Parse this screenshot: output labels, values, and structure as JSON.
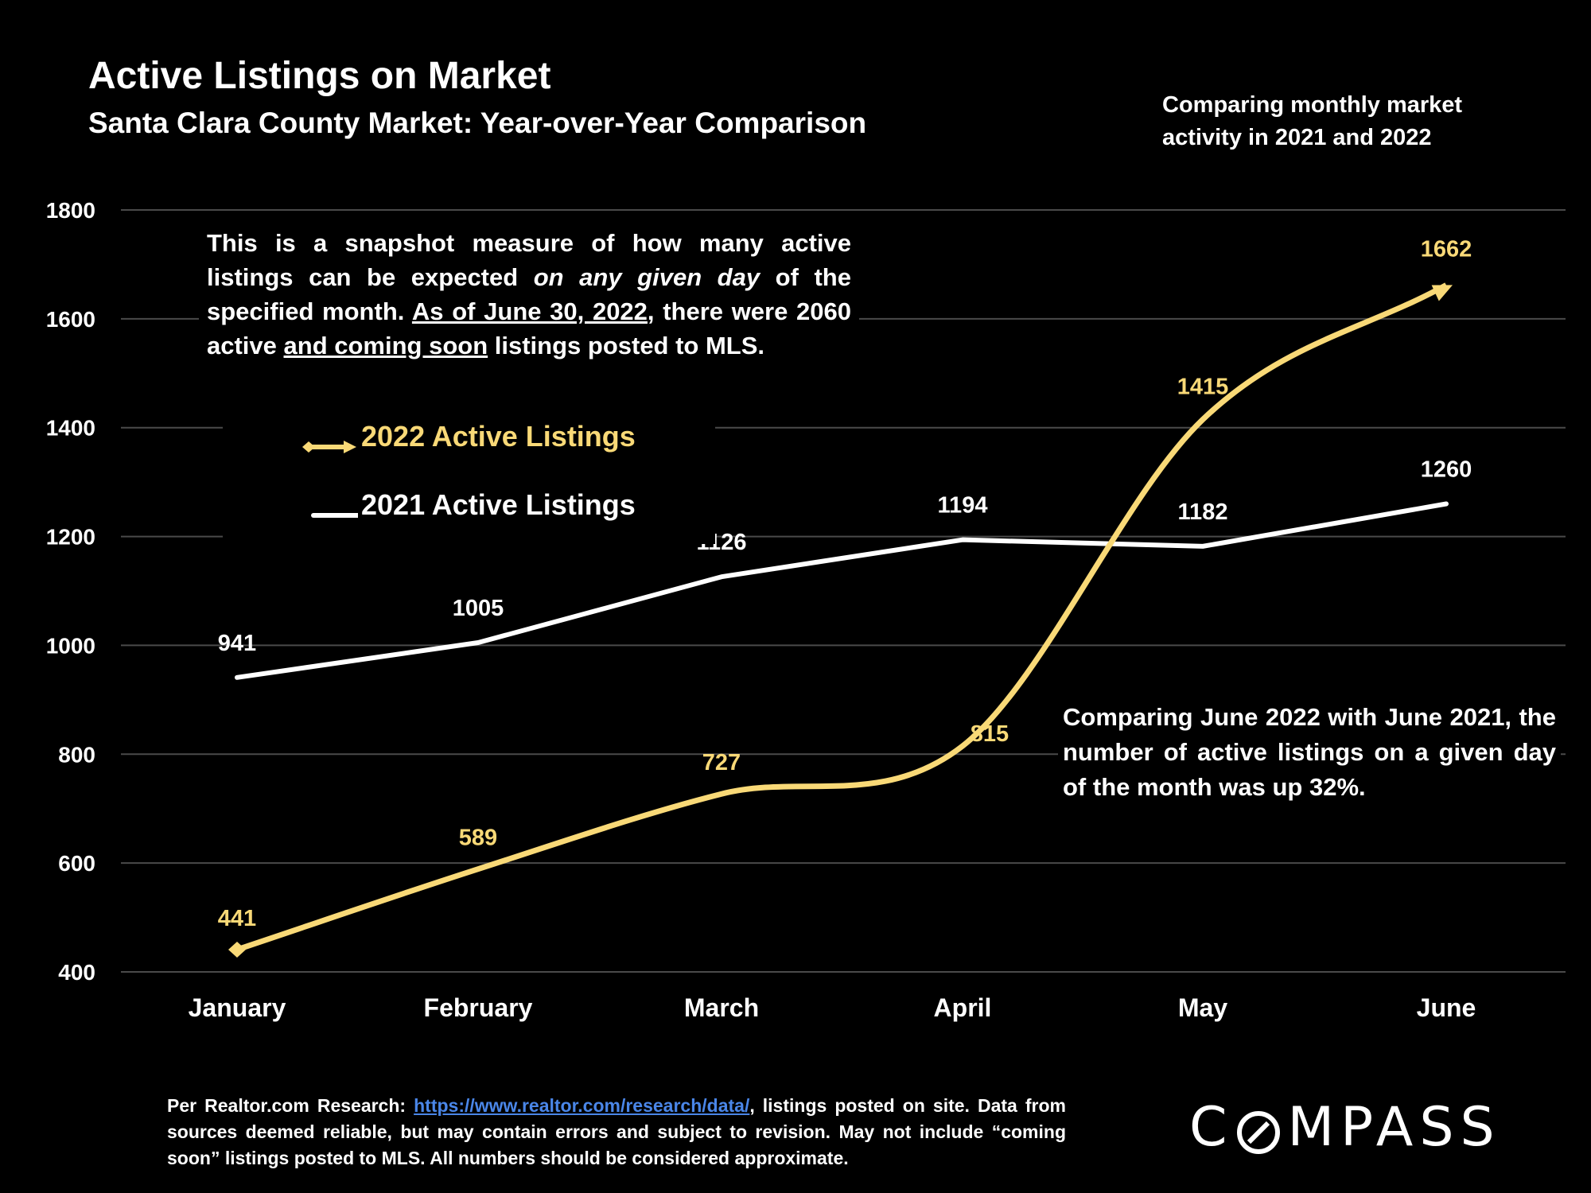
{
  "header": {
    "title": "Active Listings on Market",
    "subtitle": "Santa Clara County Market: Year-over-Year Comparison",
    "side_note": "Comparing monthly market activity in 2021 and 2022"
  },
  "note": {
    "p1": "This is a snapshot measure of how many active listings can be expected ",
    "p1_em": "on any given day",
    "p2": " of the specified month. ",
    "p2_u": "As of June 30, 2022",
    "p3": ", there were 2060 active ",
    "p3_u": "and coming soon",
    "p4": " listings posted to MLS."
  },
  "comparison_note": "Comparing June 2022 with June 2021, the number of active listings on a given day of the month was up 32%.",
  "footer": {
    "prefix": "Per Realtor.com Research: ",
    "link": "https://www.realtor.com/research/data/",
    "suffix": ", listings posted on site. Data from sources deemed reliable, but may contain errors and subject to revision. May not include “coming soon” listings posted to MLS. All numbers should be considered approximate."
  },
  "logo": {
    "left": "C",
    "right": "MPASS"
  },
  "colors": {
    "background": "#000000",
    "series_2022": "#f9d977",
    "series_2021": "#ffffff",
    "grid": "#4a4a4a",
    "link": "#4a86e8"
  },
  "chart_data": {
    "type": "line",
    "categories": [
      "January",
      "February",
      "March",
      "April",
      "May",
      "June"
    ],
    "ylim": [
      400,
      1800
    ],
    "yticks": [
      400,
      600,
      800,
      1000,
      1200,
      1400,
      1600,
      1800
    ],
    "grid": true,
    "legend_position": "upper-left",
    "series": [
      {
        "name": "2022 Active Listings",
        "values": [
          441,
          589,
          727,
          815,
          1415,
          1662
        ],
        "color": "#f9d977",
        "smooth": true
      },
      {
        "name": "2021 Active Listings",
        "values": [
          941,
          1005,
          1126,
          1194,
          1182,
          1260
        ],
        "color": "#ffffff",
        "smooth": false
      }
    ]
  }
}
